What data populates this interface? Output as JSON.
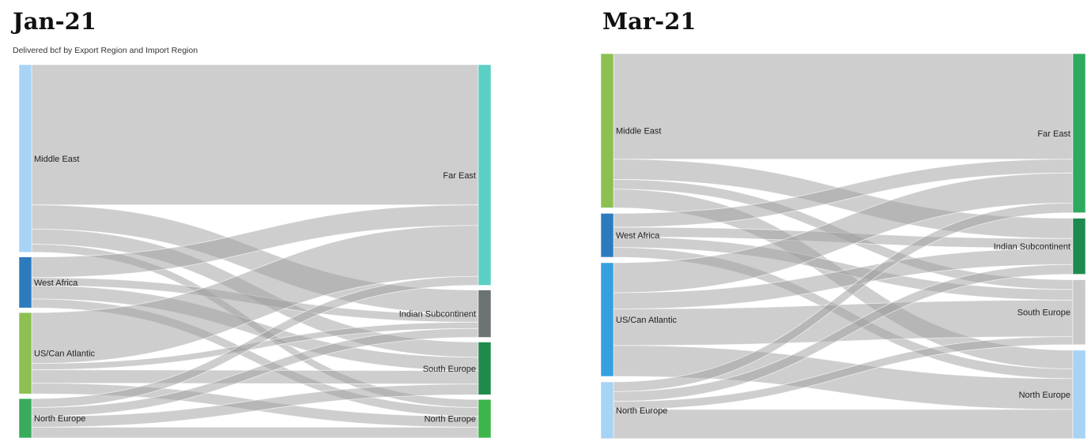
{
  "chart_data": [
    {
      "type": "sankey",
      "title": "Jan-21",
      "subtitle": "Delivered bcf by Export Region and Import Region",
      "sources": [
        {
          "name": "Middle East",
          "color": "#a7d3f5"
        },
        {
          "name": "West Africa",
          "color": "#2c7bbf"
        },
        {
          "name": "US/Can Atlantic",
          "color": "#8cc152"
        },
        {
          "name": "North Europe",
          "color": "#3aaa5c"
        }
      ],
      "targets": [
        {
          "name": "Far East",
          "color": "#5ccfc4"
        },
        {
          "name": "Indian Subcontinent",
          "color": "#6b7373"
        },
        {
          "name": "South Europe",
          "color": "#1f8a4c"
        },
        {
          "name": "North Europe",
          "color": "#3cb54a"
        }
      ],
      "links": [
        {
          "source": "Middle East",
          "target": "Far East",
          "value": 157
        },
        {
          "source": "Middle East",
          "target": "Indian Subcontinent",
          "value": 27
        },
        {
          "source": "Middle East",
          "target": "South Europe",
          "value": 17
        },
        {
          "source": "Middle East",
          "target": "North Europe",
          "value": 9
        },
        {
          "source": "West Africa",
          "target": "Far East",
          "value": 23
        },
        {
          "source": "West Africa",
          "target": "Indian Subcontinent",
          "value": 9
        },
        {
          "source": "West Africa",
          "target": "South Europe",
          "value": 15
        },
        {
          "source": "West Africa",
          "target": "North Europe",
          "value": 10
        },
        {
          "source": "US/Can Atlantic",
          "target": "Far East",
          "value": 57
        },
        {
          "source": "US/Can Atlantic",
          "target": "Indian Subcontinent",
          "value": 7
        },
        {
          "source": "US/Can Atlantic",
          "target": "South Europe",
          "value": 15
        },
        {
          "source": "US/Can Atlantic",
          "target": "North Europe",
          "value": 12
        },
        {
          "source": "North Europe",
          "target": "Far East",
          "value": 10
        },
        {
          "source": "North Europe",
          "target": "Indian Subcontinent",
          "value": 10
        },
        {
          "source": "North Europe",
          "target": "South Europe",
          "value": 12
        },
        {
          "source": "North Europe",
          "target": "North Europe",
          "value": 12
        }
      ]
    },
    {
      "type": "sankey",
      "title": "Mar-21",
      "subtitle": "",
      "sources": [
        {
          "name": "Middle East",
          "color": "#8cc152"
        },
        {
          "name": "West Africa",
          "color": "#2c7bbf"
        },
        {
          "name": "US/Can Atlantic",
          "color": "#34a0e0"
        },
        {
          "name": "North Europe",
          "color": "#a7d3f5"
        }
      ],
      "targets": [
        {
          "name": "Far East",
          "color": "#2eaa5e"
        },
        {
          "name": "Indian Subcontinent",
          "color": "#1f8a50"
        },
        {
          "name": "South Europe",
          "color": "#c8c8c8"
        },
        {
          "name": "North Europe",
          "color": "#a7d3f5"
        }
      ],
      "links": [
        {
          "source": "Middle East",
          "target": "Far East",
          "value": 130
        },
        {
          "source": "Middle East",
          "target": "Indian Subcontinent",
          "value": 25
        },
        {
          "source": "Middle East",
          "target": "South Europe",
          "value": 12
        },
        {
          "source": "Middle East",
          "target": "North Europe",
          "value": 23
        },
        {
          "source": "West Africa",
          "target": "Far East",
          "value": 17
        },
        {
          "source": "West Africa",
          "target": "Indian Subcontinent",
          "value": 12
        },
        {
          "source": "West Africa",
          "target": "South Europe",
          "value": 13
        },
        {
          "source": "West Africa",
          "target": "North Europe",
          "value": 12
        },
        {
          "source": "US/Can Atlantic",
          "target": "Far East",
          "value": 37
        },
        {
          "source": "US/Can Atlantic",
          "target": "Indian Subcontinent",
          "value": 20
        },
        {
          "source": "US/Can Atlantic",
          "target": "South Europe",
          "value": 45
        },
        {
          "source": "US/Can Atlantic",
          "target": "North Europe",
          "value": 38
        },
        {
          "source": "North Europe",
          "target": "Far East",
          "value": 12
        },
        {
          "source": "North Europe",
          "target": "Indian Subcontinent",
          "value": 12
        },
        {
          "source": "North Europe",
          "target": "South Europe",
          "value": 10
        },
        {
          "source": "North Europe",
          "target": "North Europe",
          "value": 36
        }
      ]
    }
  ]
}
